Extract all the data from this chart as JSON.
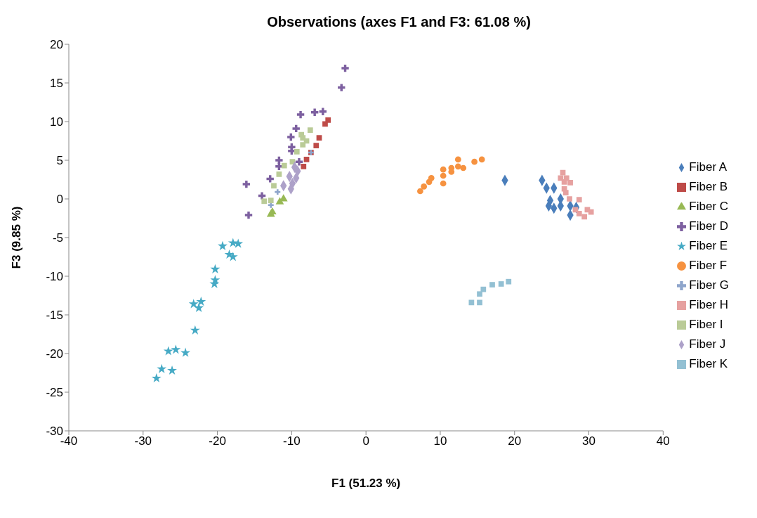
{
  "chart_data": {
    "type": "scatter",
    "title": "Observations (axes F1 and F3: 61.08 %)",
    "xlabel": "F1 (51.23 %)",
    "ylabel": "F3 (9.85 %)",
    "xlim": [
      -40,
      40
    ],
    "xticks": [
      -40,
      -30,
      -20,
      -10,
      0,
      10,
      20,
      30,
      40
    ],
    "ylim": [
      -30,
      20
    ],
    "yticks": [
      -30,
      -25,
      -20,
      -15,
      -10,
      -5,
      0,
      5,
      10,
      15,
      20
    ],
    "grid": false,
    "legend": "right",
    "series": [
      {
        "name": "Fiber A",
        "color": "#4a7ebb",
        "marker": "diamond",
        "x": [
          18.7,
          23.7,
          24.3,
          25.3,
          24.8,
          24.6,
          26.2,
          26.2,
          25.3,
          27.5,
          28.3,
          27.5
        ],
        "values": [
          2.4,
          2.4,
          1.4,
          1.4,
          -0.2,
          -0.9,
          0.0,
          -0.9,
          -1.2,
          -0.9,
          -1.1,
          -2.1
        ]
      },
      {
        "name": "Fiber B",
        "color": "#be4b48",
        "marker": "square",
        "x": [
          -5.1,
          -5.5,
          -6.3,
          -6.7,
          -7.4,
          -8.0,
          -8.4
        ],
        "values": [
          10.2,
          9.7,
          7.9,
          6.9,
          6.0,
          5.1,
          4.2
        ]
      },
      {
        "name": "Fiber C",
        "color": "#98b954",
        "marker": "triangle",
        "x": [
          -11.6,
          -11.1,
          -12.6,
          -12.8
        ],
        "values": [
          -0.4,
          0.0,
          -1.7,
          -2.0
        ]
      },
      {
        "name": "Fiber D",
        "color": "#7d60a0",
        "marker": "cross",
        "x": [
          -2.8,
          -3.3,
          -8.8,
          -6.9,
          -5.8,
          -9.4,
          -10.1,
          -10.0,
          -10.0,
          -11.7,
          -11.7,
          -12.9,
          -16.1,
          -14.0,
          -15.8,
          -9.0
        ],
        "values": [
          16.9,
          14.4,
          10.9,
          11.2,
          11.3,
          9.1,
          8.0,
          6.7,
          6.2,
          5.0,
          4.2,
          2.6,
          1.9,
          0.4,
          -2.1,
          4.8
        ]
      },
      {
        "name": "Fiber E",
        "color": "#46aac5",
        "marker": "star",
        "x": [
          -19.3,
          -17.9,
          -17.2,
          -18.4,
          -17.9,
          -20.3,
          -20.3,
          -20.4,
          -23.2,
          -22.2,
          -22.5,
          -23.0,
          -26.6,
          -25.6,
          -24.3,
          -27.5,
          -26.1,
          -28.2
        ],
        "values": [
          -6.1,
          -5.7,
          -5.8,
          -7.2,
          -7.5,
          -9.1,
          -10.5,
          -11.0,
          -13.6,
          -13.3,
          -14.1,
          -17.0,
          -19.7,
          -19.5,
          -19.9,
          -22.0,
          -22.2,
          -23.2
        ]
      },
      {
        "name": "Fiber F",
        "color": "#f69240",
        "marker": "circle",
        "x": [
          7.3,
          7.8,
          8.5,
          8.8,
          10.4,
          10.4,
          10.4,
          11.5,
          11.5,
          12.4,
          12.4,
          13.1,
          14.6,
          15.6
        ],
        "values": [
          1.0,
          1.6,
          2.2,
          2.7,
          2.0,
          3.0,
          3.8,
          4.0,
          3.5,
          5.1,
          4.2,
          4.0,
          4.8,
          5.1
        ]
      },
      {
        "name": "Fiber G",
        "color": "#8ea5cb",
        "marker": "plus",
        "x": [
          -7.4,
          -11.9,
          -12.8
        ],
        "values": [
          6.0,
          0.9,
          -0.8
        ]
      },
      {
        "name": "Fiber H",
        "color": "#e6a1a0",
        "marker": "square",
        "x": [
          26.5,
          26.2,
          27.0,
          26.7,
          27.5,
          26.7,
          26.9,
          27.4,
          28.7,
          28.2,
          28.7,
          29.4,
          29.8,
          30.3
        ],
        "values": [
          3.4,
          2.7,
          2.7,
          2.2,
          2.1,
          1.3,
          0.8,
          0.0,
          -0.1,
          -1.4,
          -1.9,
          -2.3,
          -1.4,
          -1.7
        ]
      },
      {
        "name": "Fiber I",
        "color": "#bacb97",
        "marker": "square",
        "x": [
          -7.5,
          -8.7,
          -8.5,
          -8.0,
          -8.5,
          -9.3,
          -9.9,
          -11.0,
          -11.7,
          -12.4,
          -13.7,
          -12.8
        ],
        "values": [
          8.9,
          8.3,
          7.9,
          7.5,
          7.0,
          6.1,
          4.8,
          4.3,
          3.2,
          1.7,
          -0.3,
          -0.2
        ]
      },
      {
        "name": "Fiber J",
        "color": "#ada1c9",
        "marker": "diamond",
        "x": [
          -9.6,
          -9.2,
          -10.3,
          -9.4,
          -9.9,
          -11.1,
          -10.1
        ],
        "values": [
          4.1,
          3.6,
          2.9,
          2.7,
          2.0,
          1.7,
          1.3
        ]
      },
      {
        "name": "Fiber K",
        "color": "#93c0d3",
        "marker": "square",
        "x": [
          14.2,
          15.3,
          15.3,
          15.8,
          17.0,
          18.2,
          19.2
        ],
        "values": [
          -13.4,
          -13.4,
          -12.3,
          -11.7,
          -11.1,
          -11.0,
          -10.7
        ]
      }
    ]
  }
}
